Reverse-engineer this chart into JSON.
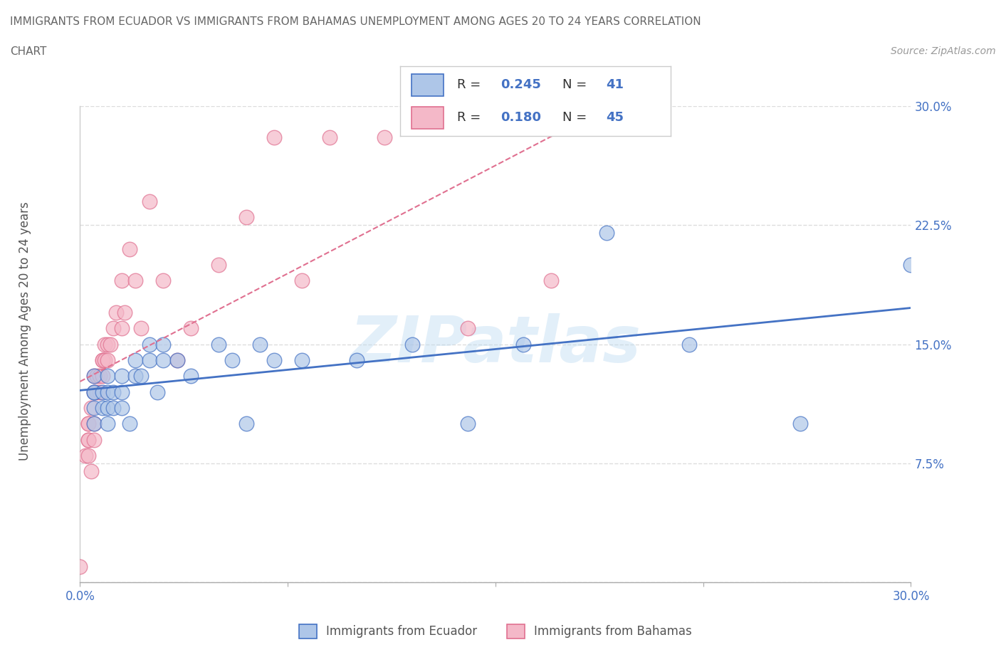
{
  "title_line1": "IMMIGRANTS FROM ECUADOR VS IMMIGRANTS FROM BAHAMAS UNEMPLOYMENT AMONG AGES 20 TO 24 YEARS CORRELATION",
  "title_line2": "CHART",
  "source_text": "Source: ZipAtlas.com",
  "ylabel": "Unemployment Among Ages 20 to 24 years",
  "xlim": [
    0.0,
    0.3
  ],
  "ylim": [
    0.0,
    0.3
  ],
  "ytick_vals": [
    0.0,
    0.075,
    0.15,
    0.225,
    0.3
  ],
  "ytick_labels": [
    "",
    "7.5%",
    "15.0%",
    "22.5%",
    "30.0%"
  ],
  "xtick_vals": [
    0.0,
    0.075,
    0.15,
    0.225,
    0.3
  ],
  "xtick_labels": [
    "0.0%",
    "",
    "",
    "",
    "30.0%"
  ],
  "R_ecuador": 0.245,
  "N_ecuador": 41,
  "R_bahamas": 0.18,
  "N_bahamas": 45,
  "color_ecuador_face": "#aec6e8",
  "color_ecuador_edge": "#4472c4",
  "color_bahamas_face": "#f4b8c8",
  "color_bahamas_edge": "#e07090",
  "line_color_ecuador": "#4472c4",
  "line_color_bahamas": "#e07090",
  "watermark": "ZIPatlas",
  "ecuador_x": [
    0.005,
    0.005,
    0.005,
    0.005,
    0.005,
    0.008,
    0.008,
    0.01,
    0.01,
    0.01,
    0.01,
    0.012,
    0.012,
    0.015,
    0.015,
    0.015,
    0.018,
    0.02,
    0.02,
    0.022,
    0.025,
    0.025,
    0.028,
    0.03,
    0.03,
    0.035,
    0.04,
    0.05,
    0.055,
    0.06,
    0.065,
    0.07,
    0.08,
    0.1,
    0.12,
    0.14,
    0.16,
    0.19,
    0.22,
    0.26,
    0.3
  ],
  "ecuador_y": [
    0.12,
    0.12,
    0.11,
    0.1,
    0.13,
    0.12,
    0.11,
    0.12,
    0.11,
    0.1,
    0.13,
    0.12,
    0.11,
    0.12,
    0.11,
    0.13,
    0.1,
    0.13,
    0.14,
    0.13,
    0.15,
    0.14,
    0.12,
    0.15,
    0.14,
    0.14,
    0.13,
    0.15,
    0.14,
    0.1,
    0.15,
    0.14,
    0.14,
    0.14,
    0.15,
    0.1,
    0.15,
    0.22,
    0.15,
    0.1,
    0.2
  ],
  "bahamas_x": [
    0.0,
    0.002,
    0.003,
    0.003,
    0.003,
    0.003,
    0.003,
    0.004,
    0.004,
    0.005,
    0.005,
    0.005,
    0.005,
    0.006,
    0.006,
    0.007,
    0.007,
    0.008,
    0.008,
    0.008,
    0.009,
    0.009,
    0.01,
    0.01,
    0.011,
    0.012,
    0.013,
    0.015,
    0.015,
    0.016,
    0.018,
    0.02,
    0.022,
    0.025,
    0.03,
    0.035,
    0.04,
    0.05,
    0.06,
    0.07,
    0.08,
    0.09,
    0.11,
    0.14,
    0.17
  ],
  "bahamas_y": [
    0.01,
    0.08,
    0.08,
    0.09,
    0.09,
    0.1,
    0.1,
    0.11,
    0.07,
    0.09,
    0.1,
    0.12,
    0.13,
    0.12,
    0.13,
    0.12,
    0.13,
    0.13,
    0.14,
    0.14,
    0.14,
    0.15,
    0.14,
    0.15,
    0.15,
    0.16,
    0.17,
    0.16,
    0.19,
    0.17,
    0.21,
    0.19,
    0.16,
    0.24,
    0.19,
    0.14,
    0.16,
    0.2,
    0.23,
    0.28,
    0.19,
    0.28,
    0.28,
    0.16,
    0.19
  ],
  "grid_color": "#dddddd",
  "bg_color": "#ffffff",
  "title_color": "#666666",
  "axis_val_color": "#4472c4",
  "label_color": "#555555"
}
